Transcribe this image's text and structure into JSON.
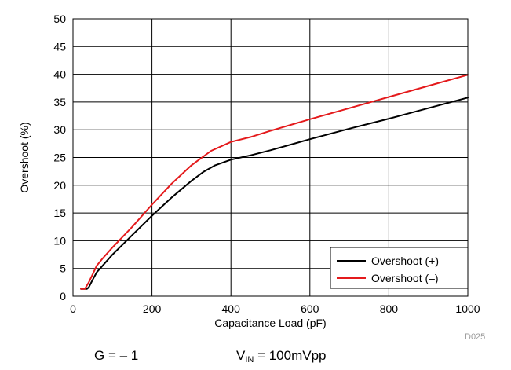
{
  "chart_data": {
    "type": "line",
    "title": "",
    "xlabel": "Capacitance Load (pF)",
    "ylabel": "Overshoot (%)",
    "xlim": [
      0,
      1000
    ],
    "ylim": [
      0,
      50
    ],
    "xticks": [
      0,
      200,
      400,
      600,
      800,
      1000
    ],
    "yticks": [
      0,
      5,
      10,
      15,
      20,
      25,
      30,
      35,
      40,
      45,
      50
    ],
    "grid": true,
    "legend_position": "bottom-right",
    "series": [
      {
        "name": "Overshoot (+)",
        "color": "#000000",
        "x": [
          20,
          35,
          40,
          50,
          60,
          75,
          100,
          150,
          200,
          250,
          300,
          330,
          360,
          400,
          450,
          500,
          600,
          700,
          800,
          900,
          1000
        ],
        "y": [
          1.3,
          1.3,
          1.6,
          3.0,
          4.3,
          5.5,
          7.5,
          11.0,
          14.5,
          17.8,
          20.8,
          22.4,
          23.6,
          24.6,
          25.4,
          26.3,
          28.3,
          30.2,
          32.0,
          33.9,
          35.8
        ]
      },
      {
        "name": "Overshoot (–)",
        "color": "#e41a1c",
        "x": [
          20,
          30,
          40,
          50,
          60,
          75,
          100,
          150,
          200,
          250,
          300,
          350,
          400,
          450,
          500,
          600,
          700,
          800,
          900,
          1000
        ],
        "y": [
          1.3,
          1.3,
          2.5,
          4.0,
          5.5,
          6.8,
          8.8,
          12.5,
          16.5,
          20.3,
          23.6,
          26.2,
          27.8,
          28.7,
          29.8,
          31.9,
          33.9,
          35.9,
          37.9,
          39.9
        ]
      }
    ]
  },
  "figure_code": "D025",
  "conditions": {
    "gain": "G = – 1",
    "vin_prefix": "V",
    "vin_subscript": "IN",
    "vin_value": " = 100mVpp"
  }
}
